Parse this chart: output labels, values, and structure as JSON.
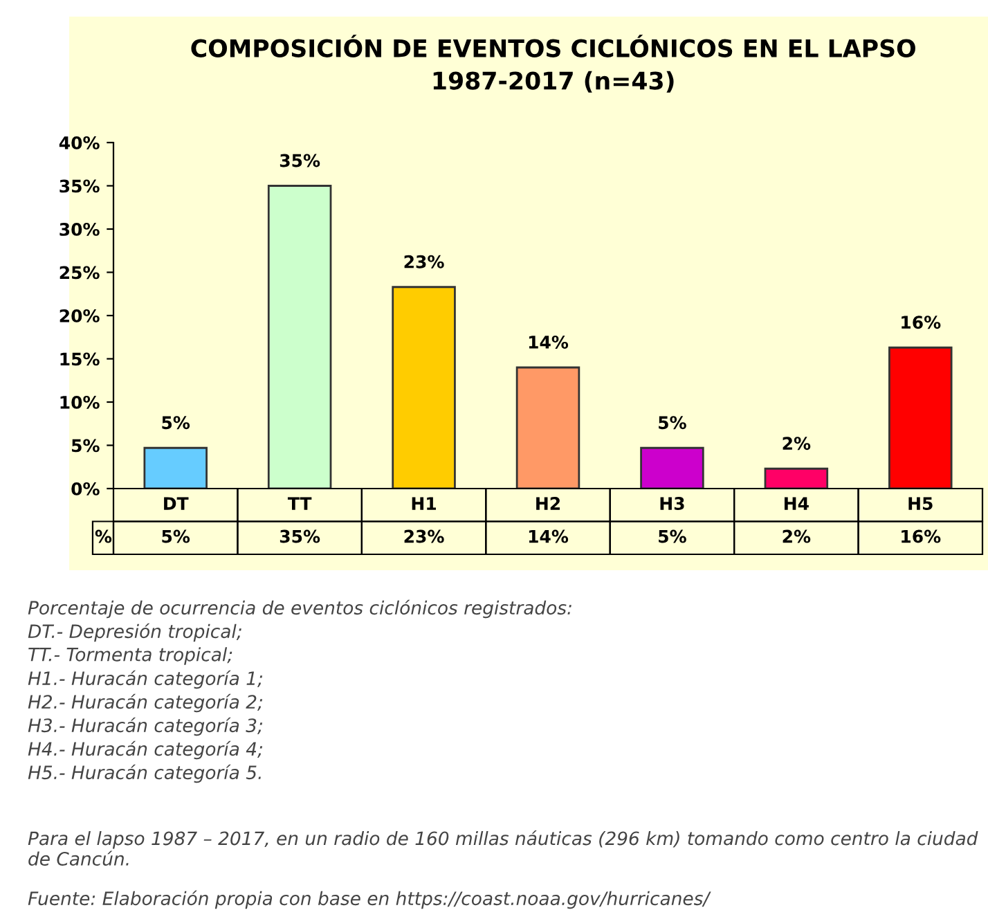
{
  "chart_data": {
    "type": "bar",
    "title": "COMPOSICIÓN DE EVENTOS CICLÓNICOS EN EL LAPSO\n1987-2017 (n=43)",
    "categories": [
      "DT",
      "TT",
      "H1",
      "H2",
      "H3",
      "H4",
      "H5"
    ],
    "values": [
      4.7,
      35,
      23.3,
      14,
      4.7,
      2.3,
      16.3
    ],
    "colors": [
      "#66ccff",
      "#ccffcc",
      "#ffcc00",
      "#ff9966",
      "#cc00cc",
      "#ff0066",
      "#ff0000"
    ],
    "value_labels": [
      "5%",
      "35%",
      "23%",
      "14%",
      "5%",
      "2%",
      "16%"
    ],
    "ylim": [
      0,
      40
    ],
    "yticks": [
      {
        "value": 0,
        "label": "0%"
      },
      {
        "value": 5,
        "label": "5%"
      },
      {
        "value": 10,
        "label": "10%"
      },
      {
        "value": 15,
        "label": "15%"
      },
      {
        "value": 20,
        "label": "20%"
      },
      {
        "value": 25,
        "label": "25%"
      },
      {
        "value": 30,
        "label": "30%"
      },
      {
        "value": 35,
        "label": "35%"
      },
      {
        "value": 40,
        "label": "40%"
      }
    ],
    "grid": false,
    "legend": false,
    "annotations": [
      "%",
      "Porcentaje de ocurrencia de eventos ciclónicos registrados:",
      "DT.- Depresión tropical;",
      "TT.- Tormenta tropical;",
      "H1.- Huracán categoría 1;",
      "H2.- Huracán categoría 2;",
      "H3.- Huracán categoría 3;",
      "H4.- Huracán categoría 4;",
      "H5.- Huracán categoría 5.",
      "Para el lapso 1987 – 2017, en un radio de 160 millas náuticas (296 km) tomando como centro la ciudad de Cancún.",
      "Fuente: Elaboración propia con base en https://coast.noaa.gov/hurricanes/"
    ]
  }
}
